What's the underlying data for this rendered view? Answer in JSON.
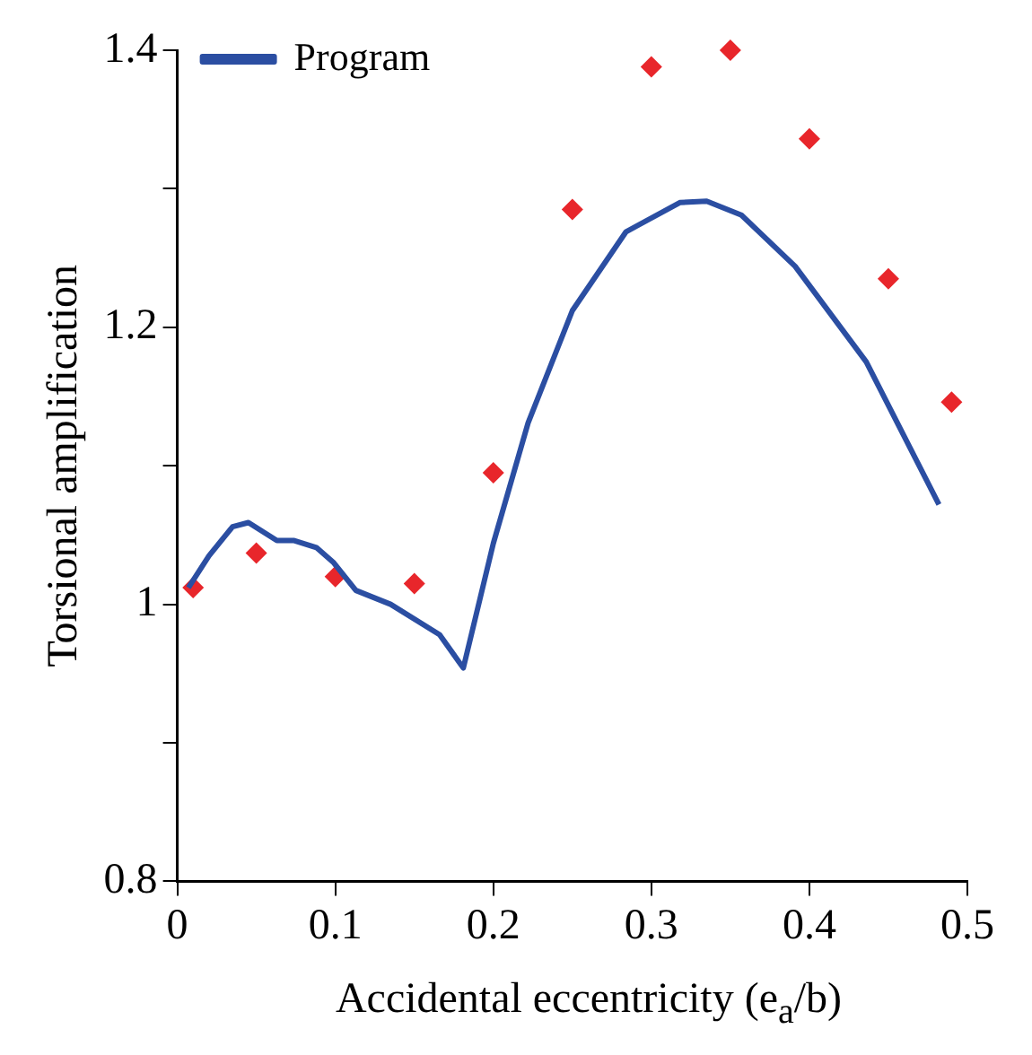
{
  "chart_data": {
    "type": "line",
    "xlabel": "Accidental eccentricity (e$_{a}$/b)",
    "ylabel": "Torsional amplification",
    "xlim": [
      0,
      0.5
    ],
    "xticks": [
      0,
      0.1,
      0.2,
      0.3,
      0.4,
      0.5
    ],
    "ylim": [
      0.8,
      1.4
    ],
    "yticks": [
      0.8,
      {
        "value": 0.9,
        "label": null
      },
      1,
      {
        "value": 1.1,
        "label": null
      },
      1.2,
      {
        "value": 1.3,
        "label": null
      },
      1.4
    ],
    "legend": "top left",
    "grid": false,
    "series": [
      {
        "name": "Program",
        "color": "#2b4ea2",
        "marker": "none",
        "line_style": "solid",
        "x": [
          0.007,
          0.02,
          0.035,
          0.045,
          0.063,
          0.074,
          0.088,
          0.099,
          0.113,
          0.135,
          0.166,
          0.181,
          0.2,
          0.222,
          0.25,
          0.284,
          0.318,
          0.335,
          0.357,
          0.391,
          0.436,
          0.482
        ],
        "values": [
          1.012,
          1.035,
          1.056,
          1.059,
          1.046,
          1.046,
          1.041,
          1.03,
          1.01,
          1.0,
          0.978,
          0.954,
          1.044,
          1.131,
          1.212,
          1.269,
          1.29,
          1.291,
          1.281,
          1.244,
          1.175,
          1.072
        ]
      },
      {
        "type": "scatter",
        "color": "#e8262b",
        "marker": "diamond",
        "x": [
          0.01,
          0.05,
          0.1,
          0.15,
          0.2,
          0.25,
          0.3,
          0.35,
          0.4,
          0.45,
          0.49
        ],
        "values": [
          1.012,
          1.037,
          1.02,
          1.015,
          1.095,
          1.285,
          1.388,
          1.4,
          1.336,
          1.235,
          1.146
        ]
      }
    ]
  }
}
